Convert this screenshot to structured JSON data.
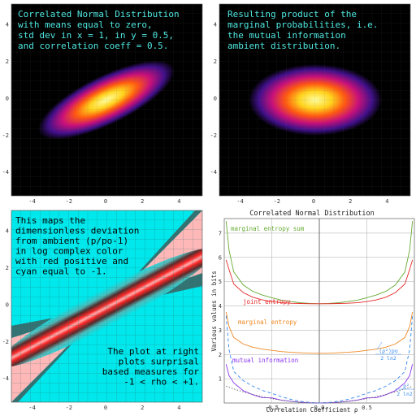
{
  "panels": {
    "top_left": {
      "text": [
        "Correlated Normal Distribution",
        "with means equal to zero,",
        "std dev in x = 1, in y = 0.5,",
        "and correlation coeff = 0.5."
      ]
    },
    "top_right": {
      "text": [
        "Resulting product of the",
        "marginal probabilities, i.e.",
        "the mutual information",
        "ambient distribution."
      ]
    },
    "bottom_left": {
      "text_top": [
        "This maps the",
        "dimensionless deviation",
        "from ambient (p/po-1)",
        "in log complex color",
        "with red positive and",
        "cyan equal to -1."
      ],
      "text_bottom": [
        "The plot at right",
        "plots surprisal",
        "based measures for",
        "-1 < rho < +1."
      ]
    }
  },
  "density_axis": {
    "x_ticks": [
      "-4",
      "-2",
      "0",
      "2",
      "4"
    ],
    "y_ticks": [
      "4",
      "2",
      "0",
      "-2",
      "-4"
    ]
  },
  "colors": {
    "text_cyan": "#4fe8e0",
    "map_cyan": "#00e8ec",
    "map_red": "#ff2020",
    "entropy_green": "#66aa33",
    "entropy_red": "#e82a2a",
    "entropy_orange": "#ee8822",
    "entropy_purple": "#8833ee",
    "entropy_blue": "#3388ee"
  },
  "chart_data": {
    "type": "line",
    "title": "Correlated Normal Distribution",
    "xlabel": "Correlation Coefficient ρ",
    "ylabel": "Various values in bits",
    "xlim": [
      -1,
      1
    ],
    "ylim": [
      0,
      7.6
    ],
    "x_ticks": [
      "-0.5",
      "0.0",
      "0.5"
    ],
    "y_ticks": [
      "1",
      "2",
      "3",
      "4",
      "5",
      "6",
      "7"
    ],
    "x": [
      -0.98,
      -0.95,
      -0.9,
      -0.8,
      -0.7,
      -0.6,
      -0.5,
      -0.4,
      -0.3,
      -0.2,
      -0.1,
      0.0,
      0.1,
      0.2,
      0.3,
      0.4,
      0.5,
      0.6,
      0.7,
      0.8,
      0.9,
      0.95,
      0.98
    ],
    "series": [
      {
        "name": "marginal entropy sum",
        "values": [
          7.5,
          6.3,
          5.4,
          4.86,
          4.6,
          4.45,
          4.34,
          4.24,
          4.18,
          4.13,
          4.1,
          4.09,
          4.1,
          4.13,
          4.18,
          4.24,
          4.34,
          4.45,
          4.6,
          4.86,
          5.4,
          6.3,
          7.5
        ]
      },
      {
        "name": "joint entropy",
        "values": [
          5.9,
          5.5,
          4.9,
          4.55,
          4.36,
          4.25,
          4.18,
          4.13,
          4.11,
          4.1,
          4.09,
          4.09,
          4.09,
          4.1,
          4.11,
          4.13,
          4.18,
          4.25,
          4.36,
          4.55,
          4.9,
          5.5,
          5.9
        ]
      },
      {
        "name": "marginal entropy",
        "values": [
          3.75,
          3.15,
          2.7,
          2.43,
          2.3,
          2.22,
          2.17,
          2.12,
          2.09,
          2.07,
          2.05,
          2.05,
          2.05,
          2.07,
          2.09,
          2.12,
          2.17,
          2.22,
          2.3,
          2.43,
          2.7,
          3.15,
          3.75
        ]
      },
      {
        "name": "mutual information",
        "values": [
          1.6,
          1.13,
          0.83,
          0.51,
          0.34,
          0.22,
          0.21,
          0.12,
          0.07,
          0.03,
          0.01,
          0.0,
          0.01,
          0.03,
          0.07,
          0.12,
          0.21,
          0.22,
          0.34,
          0.51,
          0.83,
          1.13,
          1.6
        ]
      },
      {
        "name": "(ρ²)po / 2 ln2",
        "values": [
          3.6,
          2.2,
          1.3,
          0.92,
          0.69,
          0.52,
          0.4,
          0.26,
          0.15,
          0.07,
          0.02,
          0.0,
          0.02,
          0.07,
          0.15,
          0.26,
          0.4,
          0.52,
          0.69,
          0.92,
          1.3,
          2.2,
          3.6
        ]
      },
      {
        "name": "ρ² / 2 ln2",
        "values": [
          0.69,
          0.65,
          0.58,
          0.46,
          0.35,
          0.26,
          0.18,
          0.115,
          0.065,
          0.029,
          0.007,
          0.0,
          0.007,
          0.029,
          0.065,
          0.115,
          0.18,
          0.26,
          0.35,
          0.46,
          0.58,
          0.65,
          0.69
        ]
      }
    ],
    "labels": {
      "marginal_entropy_sum": "marginal entropy sum",
      "joint_entropy": "joint entropy",
      "marginal_entropy": "marginal entropy",
      "mutual_information": "mutual information",
      "rho_po_num": "⟨ρ²⟩po",
      "rho_po_den": "2 ln2",
      "rho_num": "ρ²",
      "rho_den": "2 ln2"
    }
  }
}
